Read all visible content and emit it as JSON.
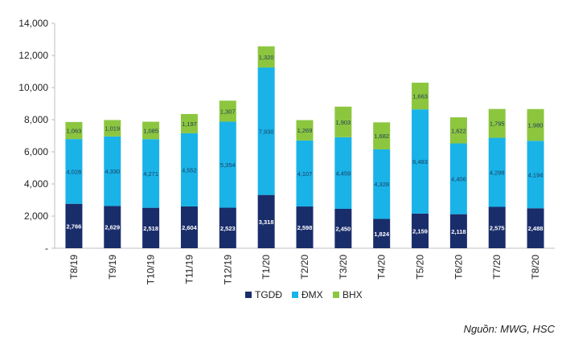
{
  "chart_data": {
    "type": "bar",
    "stacked": true,
    "title": "",
    "xlabel": "",
    "ylabel": "",
    "ylim": [
      0,
      14000
    ],
    "yticks": [
      0,
      2000,
      4000,
      6000,
      8000,
      10000,
      12000,
      14000
    ],
    "ytick_labels": [
      "-",
      "2,000",
      "4,000",
      "6,000",
      "8,000",
      "10,000",
      "12,000",
      "14,000"
    ],
    "categories": [
      "T8/19",
      "T9/19",
      "T10/19",
      "T11/19",
      "T12/19",
      "T1/20",
      "T2/20",
      "T3/20",
      "T4/20",
      "T5/20",
      "T6/20",
      "T7/20",
      "T8/20"
    ],
    "series": [
      {
        "name": "TGDĐ",
        "color": "#1a2d6b",
        "values": [
          2766,
          2629,
          2518,
          2604,
          2523,
          3318,
          2598,
          2450,
          1824,
          2159,
          2118,
          2575,
          2488
        ],
        "labels": [
          "2,766",
          "2,629",
          "2,518",
          "2,604",
          "2,523",
          "3,318",
          "2,598",
          "2,450",
          "1,824",
          "2,159",
          "2,118",
          "2,575",
          "2,488"
        ]
      },
      {
        "name": "ĐMX",
        "color": "#19b3e8",
        "values": [
          4028,
          4330,
          4271,
          4552,
          5354,
          7930,
          4107,
          4459,
          4328,
          6483,
          4406,
          4298,
          4194
        ],
        "labels": [
          "4,028",
          "4,330",
          "4,271",
          "4,552",
          "5,354",
          "7,930",
          "4,107",
          "4,459",
          "4,328",
          "6,483",
          "4,406",
          "4,298",
          "4,194"
        ]
      },
      {
        "name": "BHX",
        "color": "#8cc63f",
        "values": [
          1063,
          1019,
          1085,
          1197,
          1307,
          1320,
          1269,
          1903,
          1682,
          1663,
          1622,
          1795,
          1980
        ],
        "labels": [
          "1,063",
          "1,019",
          "1,085",
          "1,197",
          "1,307",
          "1,320",
          "1,269",
          "1,903",
          "1,682",
          "1,663",
          "1,622",
          "1,795",
          "1,980"
        ]
      }
    ],
    "grid": false,
    "legend_position": "bottom-center"
  },
  "source_note": "Nguồn: MWG, HSC"
}
